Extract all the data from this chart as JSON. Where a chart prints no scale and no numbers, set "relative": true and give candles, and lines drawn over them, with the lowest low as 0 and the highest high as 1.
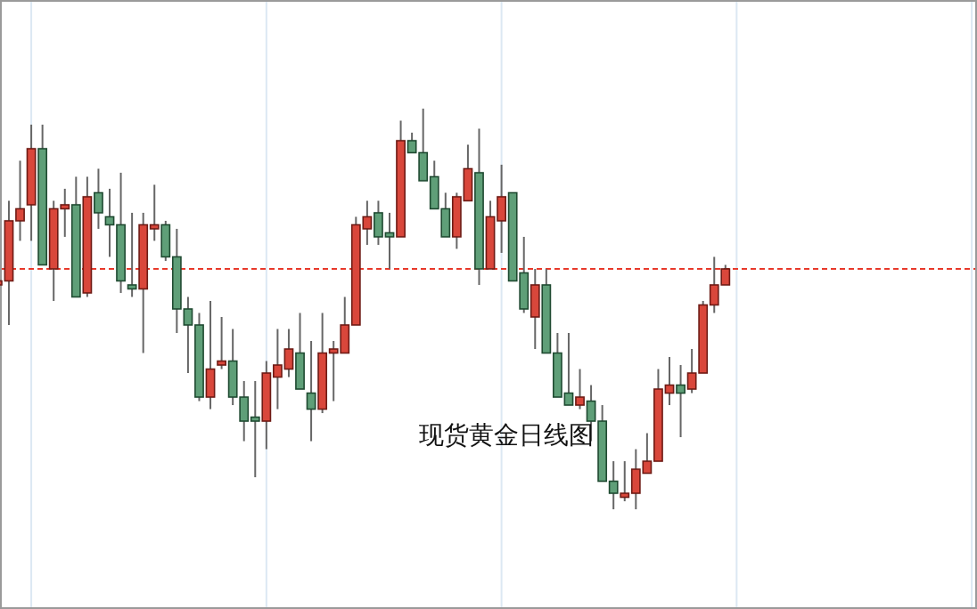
{
  "chart_data": {
    "type": "candlestick",
    "title": "现货黄金日线图",
    "relative": true,
    "grid": "x",
    "categories": [
      null,
      null,
      null,
      null,
      null,
      null,
      null,
      null,
      null,
      null,
      null,
      null,
      null,
      null,
      null,
      null,
      null,
      null,
      null,
      null,
      null,
      null,
      null,
      null,
      null,
      null,
      null,
      null,
      null,
      null,
      null,
      null,
      null,
      null,
      null,
      null,
      null,
      null,
      null,
      null,
      null,
      null,
      null,
      null,
      null,
      null,
      null,
      null,
      null,
      null,
      null,
      null,
      null,
      null,
      null,
      null,
      null,
      null,
      null,
      null,
      null,
      null,
      null,
      null,
      null,
      null
    ],
    "series": [
      {
        "colors": [
          "#d9473b",
          "#d9473b",
          "#d9473b",
          "#d9473b",
          "#5f9f78",
          "#d9473b",
          "#d9473b",
          "#5f9f78",
          "#d9473b",
          "#5f9f78",
          "#5f9f78",
          "#5f9f78",
          "#5f9f78",
          "#d9473b",
          "#d9473b",
          "#5f9f78",
          "#5f9f78",
          "#5f9f78",
          "#5f9f78",
          "#d9473b",
          "#d9473b",
          "#5f9f78",
          "#5f9f78",
          "#5f9f78",
          "#d9473b",
          "#d9473b",
          "#d9473b",
          "#5f9f78",
          "#5f9f78",
          "#d9473b",
          "#d9473b",
          "#d9473b",
          "#d9473b",
          "#d9473b",
          "#5f9f78",
          "#5f9f78",
          "#d9473b",
          "#5f9f78",
          "#5f9f78",
          "#5f9f78",
          "#5f9f78",
          "#d9473b",
          "#d9473b",
          "#5f9f78",
          "#d9473b",
          "#d9473b",
          "#5f9f78",
          "#5f9f78",
          "#d9473b",
          "#5f9f78",
          "#5f9f78",
          "#5f9f78",
          "#d9473b",
          "#5f9f78",
          "#5f9f78",
          "#5f9f78",
          "#d9473b",
          "#d9473b",
          "#d9473b",
          "#d9473b",
          "#d9473b",
          "#5f9f78",
          "#d9473b",
          "#d9473b",
          "#d9473b",
          "#d9473b"
        ],
        "ohlc": [
          [
            0.56,
            0.58,
            0.55,
            0.57
          ],
          [
            0.57,
            0.77,
            0.46,
            0.72
          ],
          [
            0.72,
            0.87,
            0.67,
            0.75
          ],
          [
            0.76,
            0.96,
            0.67,
            0.9
          ],
          [
            0.9,
            0.96,
            0.61,
            0.61
          ],
          [
            0.6,
            0.77,
            0.52,
            0.75
          ],
          [
            0.75,
            0.8,
            0.68,
            0.76
          ],
          [
            0.76,
            0.83,
            0.53,
            0.53
          ],
          [
            0.54,
            0.83,
            0.53,
            0.78
          ],
          [
            0.79,
            0.85,
            0.7,
            0.74
          ],
          [
            0.73,
            0.8,
            0.63,
            0.71
          ],
          [
            0.71,
            0.84,
            0.54,
            0.57
          ],
          [
            0.56,
            0.74,
            0.53,
            0.55
          ],
          [
            0.55,
            0.74,
            0.39,
            0.71
          ],
          [
            0.7,
            0.81,
            0.67,
            0.71
          ],
          [
            0.71,
            0.72,
            0.62,
            0.63
          ],
          [
            0.63,
            0.7,
            0.44,
            0.5
          ],
          [
            0.5,
            0.53,
            0.34,
            0.46
          ],
          [
            0.46,
            0.49,
            0.27,
            0.28
          ],
          [
            0.28,
            0.52,
            0.25,
            0.35
          ],
          [
            0.36,
            0.48,
            0.35,
            0.37
          ],
          [
            0.37,
            0.45,
            0.26,
            0.28
          ],
          [
            0.28,
            0.32,
            0.17,
            0.22
          ],
          [
            0.23,
            0.32,
            0.08,
            0.22
          ],
          [
            0.22,
            0.37,
            0.15,
            0.34
          ],
          [
            0.33,
            0.45,
            0.25,
            0.36
          ],
          [
            0.35,
            0.45,
            0.33,
            0.4
          ],
          [
            0.39,
            0.49,
            0.3,
            0.3
          ],
          [
            0.29,
            0.42,
            0.17,
            0.25
          ],
          [
            0.25,
            0.49,
            0.24,
            0.39
          ],
          [
            0.39,
            0.42,
            0.27,
            0.4
          ],
          [
            0.39,
            0.53,
            0.39,
            0.46
          ],
          [
            0.46,
            0.73,
            0.46,
            0.71
          ],
          [
            0.7,
            0.77,
            0.66,
            0.73
          ],
          [
            0.74,
            0.77,
            0.66,
            0.68
          ],
          [
            0.69,
            0.74,
            0.6,
            0.68
          ],
          [
            0.68,
            0.97,
            0.68,
            0.92
          ],
          [
            0.92,
            0.94,
            0.89,
            0.89
          ],
          [
            0.89,
            1.0,
            0.82,
            0.82
          ],
          [
            0.83,
            0.87,
            0.75,
            0.75
          ],
          [
            0.75,
            0.79,
            0.68,
            0.68
          ],
          [
            0.68,
            0.79,
            0.65,
            0.78
          ],
          [
            0.77,
            0.91,
            0.77,
            0.85
          ],
          [
            0.84,
            0.95,
            0.56,
            0.6
          ],
          [
            0.6,
            0.77,
            0.6,
            0.73
          ],
          [
            0.72,
            0.86,
            0.64,
            0.78
          ],
          [
            0.79,
            0.79,
            0.57,
            0.57
          ],
          [
            0.59,
            0.68,
            0.49,
            0.5
          ],
          [
            0.48,
            0.6,
            0.4,
            0.56
          ],
          [
            0.56,
            0.6,
            0.39,
            0.39
          ],
          [
            0.39,
            0.44,
            0.28,
            0.28
          ],
          [
            0.29,
            0.44,
            0.26,
            0.26
          ],
          [
            0.26,
            0.35,
            0.25,
            0.28
          ],
          [
            0.27,
            0.31,
            0.17,
            0.22
          ],
          [
            0.22,
            0.26,
            0.07,
            0.07
          ],
          [
            0.07,
            0.12,
            0.0,
            0.04
          ],
          [
            0.03,
            0.12,
            0.02,
            0.04
          ],
          [
            0.04,
            0.15,
            0.0,
            0.1
          ],
          [
            0.09,
            0.19,
            0.09,
            0.12
          ],
          [
            0.12,
            0.35,
            0.12,
            0.3
          ],
          [
            0.29,
            0.38,
            0.26,
            0.31
          ],
          [
            0.31,
            0.36,
            0.18,
            0.29
          ],
          [
            0.3,
            0.4,
            0.29,
            0.34
          ],
          [
            0.34,
            0.52,
            0.34,
            0.51
          ],
          [
            0.51,
            0.63,
            0.49,
            0.56
          ],
          [
            0.56,
            0.61,
            0.56,
            0.6
          ]
        ]
      }
    ],
    "ref_lines": [
      {
        "axis": "y",
        "value": 0.6,
        "color": "#e8392b",
        "line_style": "dashed"
      }
    ]
  }
}
